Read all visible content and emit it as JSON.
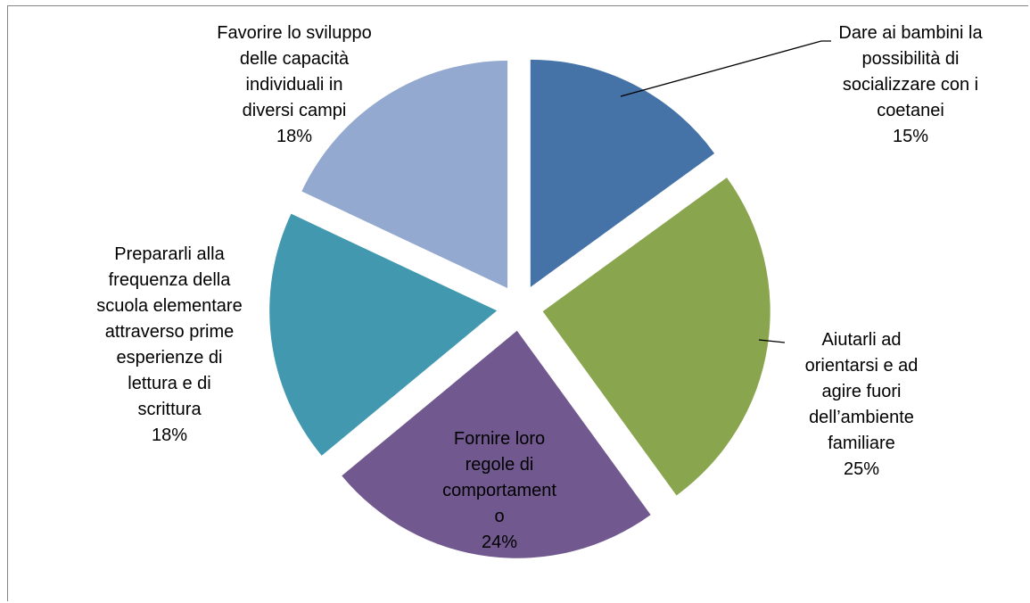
{
  "chart_data": {
    "type": "pie",
    "exploded": true,
    "slices": [
      {
        "label": "Dare ai bambini la possibilità di socializzare con i coetanei",
        "value": 15,
        "pct_label": "15%",
        "color": "#4572A7"
      },
      {
        "label": "Aiutarli ad orientarsi e ad agire fuori dell’ambiente familiare",
        "value": 25,
        "pct_label": "25%",
        "color": "#89A54E"
      },
      {
        "label": "Fornire loro regole di comportamento",
        "value": 24,
        "pct_label": "24%",
        "color": "#71588F"
      },
      {
        "label": "Prepararli alla frequenza della scuola elementare attraverso prime esperienze di lettura e di scrittura",
        "value": 18,
        "pct_label": "18%",
        "color": "#4198AF"
      },
      {
        "label": "Favorire lo sviluppo delle capacità individuali in diversi campi",
        "value": 18,
        "pct_label": "18%",
        "color": "#93A9CF"
      }
    ],
    "label_lines": [
      [
        "Dare ai bambini la",
        "possibilità di",
        "socializzare con i",
        "coetanei",
        "15%"
      ],
      [
        "Aiutarli ad",
        "orientarsi e ad",
        "agire fuori",
        "dell’ambiente",
        "familiare",
        "25%"
      ],
      [
        "Fornire loro",
        "regole di",
        "comportament",
        "o",
        "24%"
      ],
      [
        "Prepararli alla",
        "frequenza della",
        "scuola elementare",
        "attraverso prime",
        "esperienze di",
        "lettura e di",
        "scrittura",
        "18%"
      ],
      [
        "Favorire lo sviluppo",
        "delle capacità",
        "individuali in",
        "diversi campi",
        "18%"
      ]
    ]
  }
}
